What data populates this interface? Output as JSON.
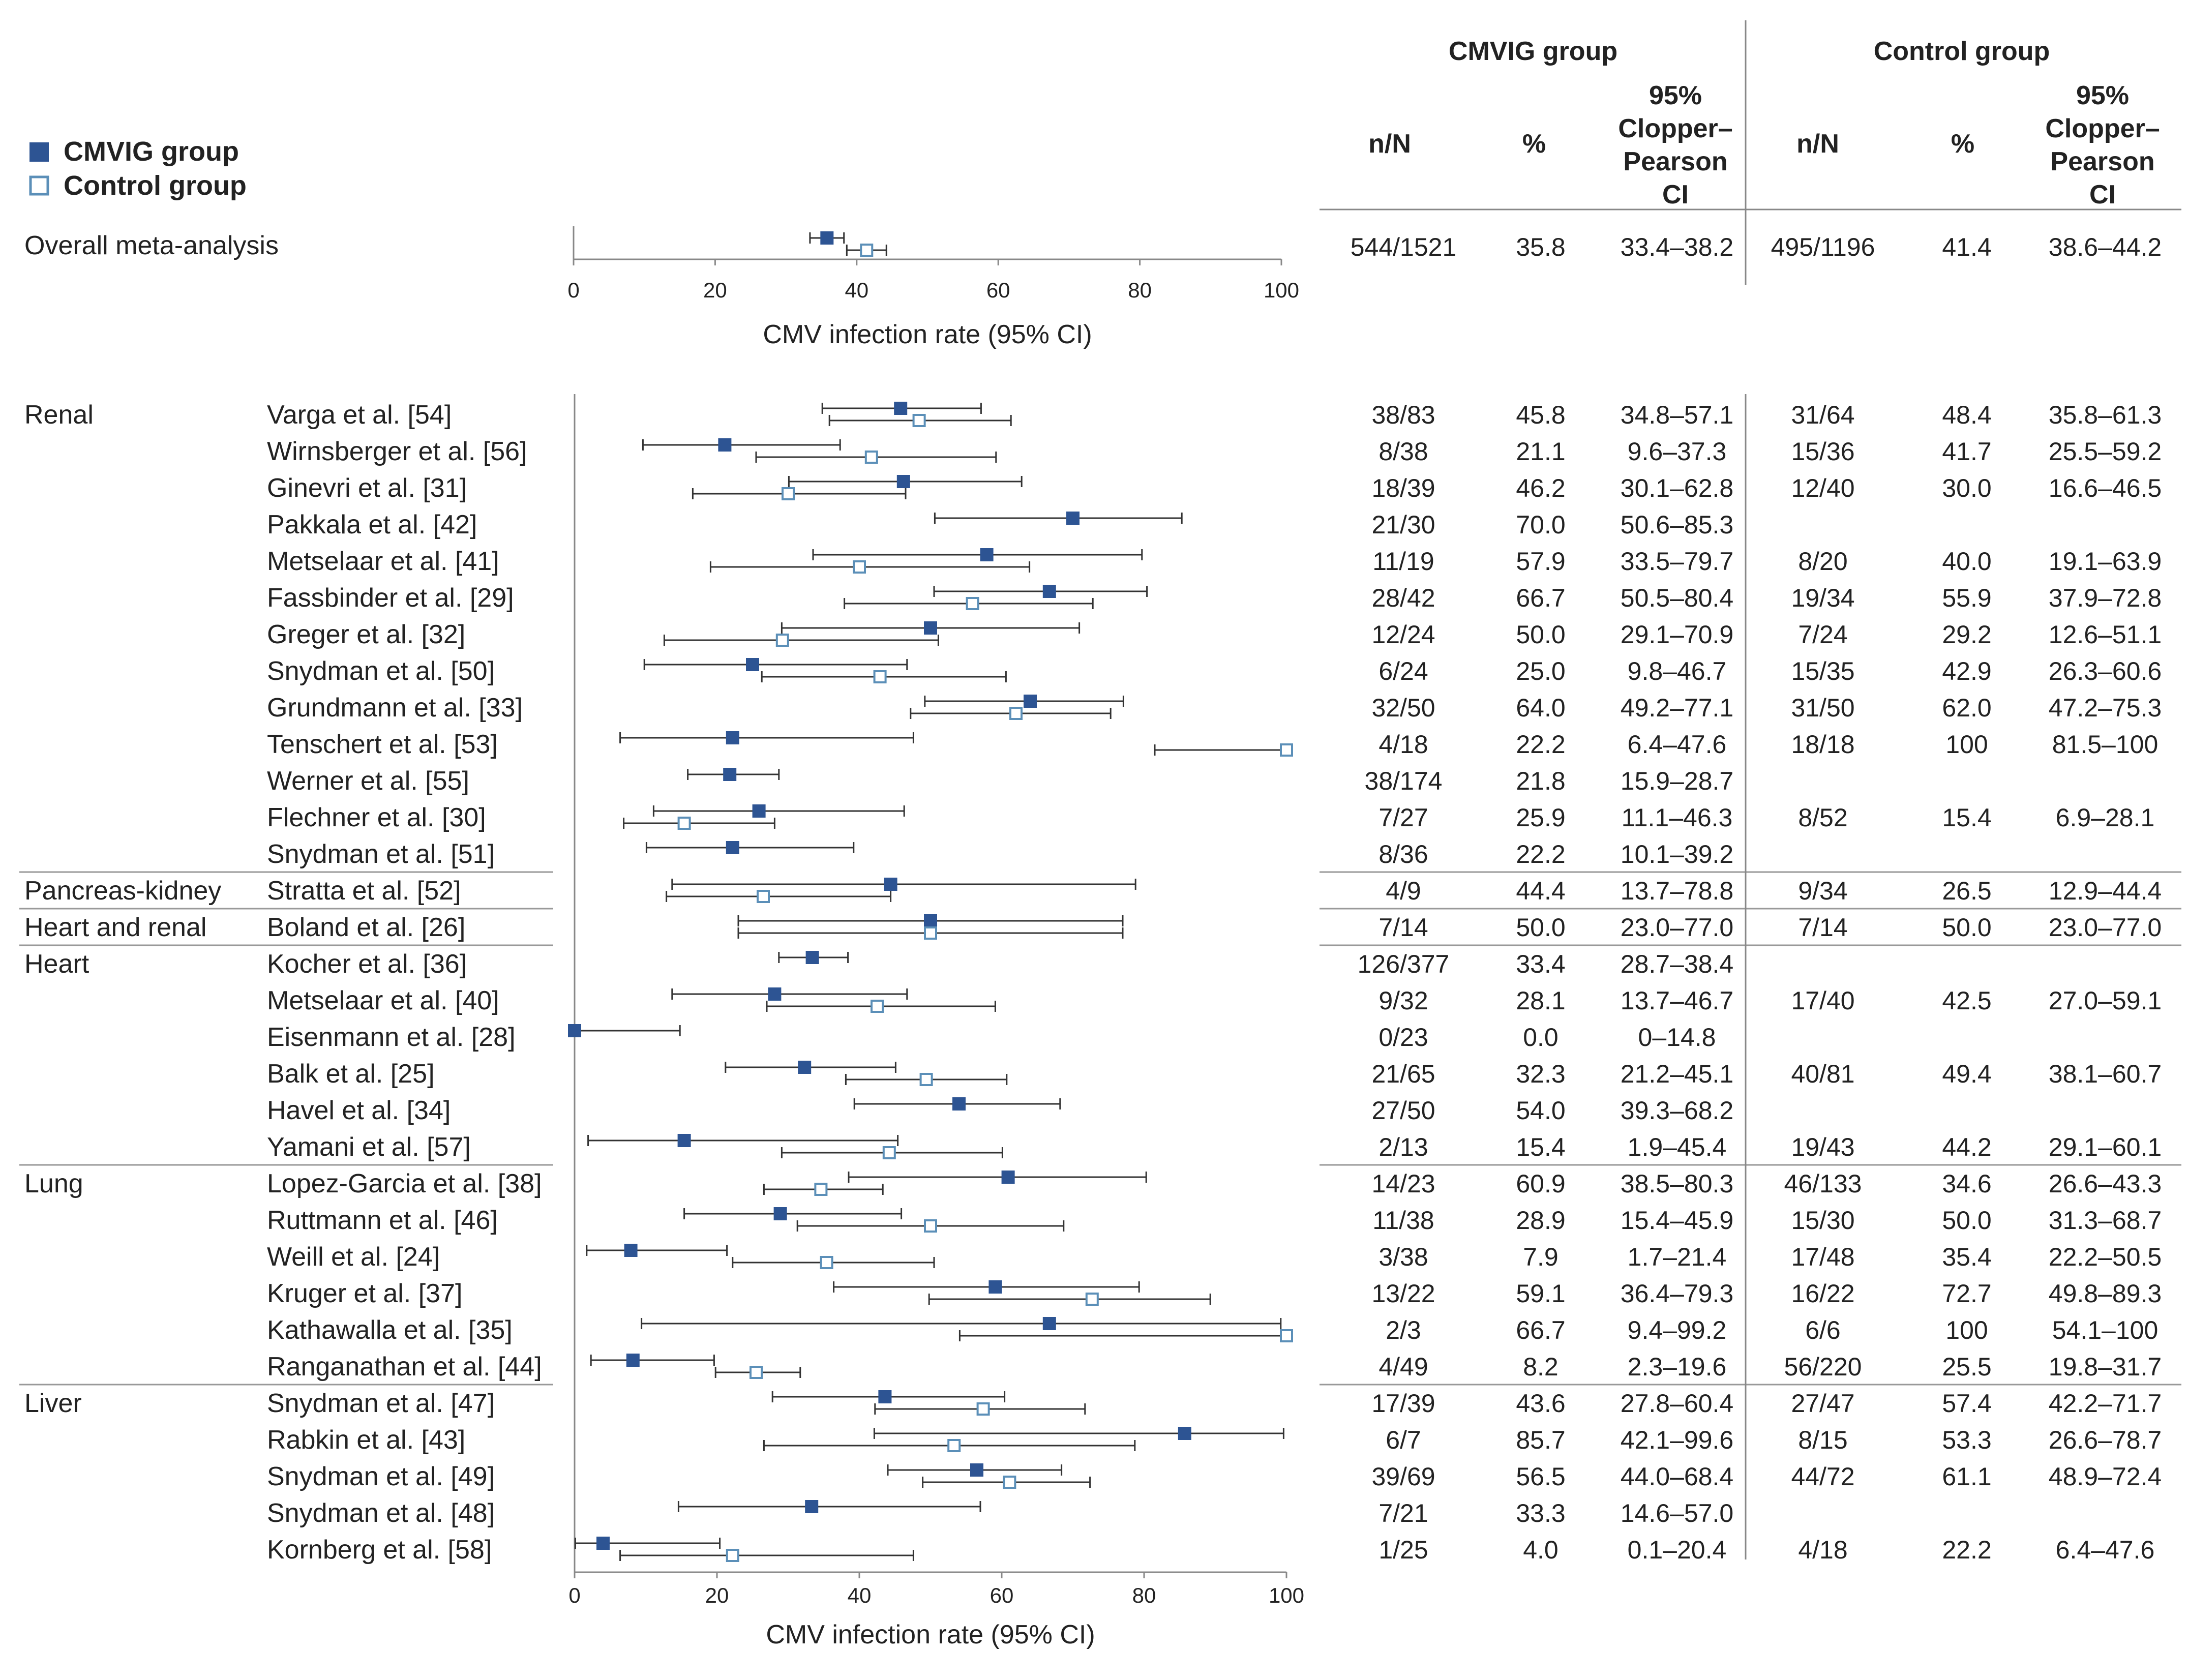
{
  "legend": {
    "cmvig_label": "CMVIG group",
    "control_label": "Control group",
    "cmvig_color": "#2d5493",
    "control_color": "#5b8fb8"
  },
  "table_header": {
    "cmvig_group": "CMVIG group",
    "control_group": "Control group",
    "n_over_n": "n/N",
    "percent": "%",
    "ci_lines": [
      "95%",
      "Clopper–",
      "Pearson",
      "CI"
    ]
  },
  "chart_data": [
    {
      "type": "forest",
      "xlabel": "CMV infection rate (95% CI)",
      "xlim": [
        0,
        100
      ],
      "ticks": [
        0,
        20,
        40,
        60,
        80,
        100
      ],
      "rows": [
        {
          "label": "Overall meta-analysis",
          "cmvig": {
            "nN": "544/1521",
            "pct": "35.8",
            "ci": "33.4–38.2",
            "est": 35.8,
            "lo": 33.4,
            "hi": 38.2
          },
          "control": {
            "nN": "495/1196",
            "pct": "41.4",
            "ci": "38.6–44.2",
            "est": 41.4,
            "lo": 38.6,
            "hi": 44.2
          }
        }
      ]
    },
    {
      "type": "forest",
      "xlabel": "CMV infection rate (95% CI)",
      "xlim": [
        0,
        100
      ],
      "ticks": [
        0,
        20,
        40,
        60,
        80,
        100
      ],
      "rows": [
        {
          "group": "Renal",
          "study": "Varga et al. [54]",
          "cmvig": {
            "nN": "38/83",
            "pct": "45.8",
            "ci": "34.8–57.1",
            "est": 45.8,
            "lo": 34.8,
            "hi": 57.1
          },
          "control": {
            "nN": "31/64",
            "pct": "48.4",
            "ci": "35.8–61.3",
            "est": 48.4,
            "lo": 35.8,
            "hi": 61.3
          }
        },
        {
          "group": "",
          "study": "Wirnsberger et al. [56]",
          "cmvig": {
            "nN": "8/38",
            "pct": "21.1",
            "ci": "9.6–37.3",
            "est": 21.1,
            "lo": 9.6,
            "hi": 37.3
          },
          "control": {
            "nN": "15/36",
            "pct": "41.7",
            "ci": "25.5–59.2",
            "est": 41.7,
            "lo": 25.5,
            "hi": 59.2
          }
        },
        {
          "group": "",
          "study": "Ginevri et al. [31]",
          "cmvig": {
            "nN": "18/39",
            "pct": "46.2",
            "ci": "30.1–62.8",
            "est": 46.2,
            "lo": 30.1,
            "hi": 62.8
          },
          "control": {
            "nN": "12/40",
            "pct": "30.0",
            "ci": "16.6–46.5",
            "est": 30.0,
            "lo": 16.6,
            "hi": 46.5
          }
        },
        {
          "group": "",
          "study": "Pakkala et al. [42]",
          "cmvig": {
            "nN": "21/30",
            "pct": "70.0",
            "ci": "50.6–85.3",
            "est": 70.0,
            "lo": 50.6,
            "hi": 85.3
          },
          "control": null
        },
        {
          "group": "",
          "study": "Metselaar et al. [41]",
          "cmvig": {
            "nN": "11/19",
            "pct": "57.9",
            "ci": "33.5–79.7",
            "est": 57.9,
            "lo": 33.5,
            "hi": 79.7
          },
          "control": {
            "nN": "8/20",
            "pct": "40.0",
            "ci": "19.1–63.9",
            "est": 40.0,
            "lo": 19.1,
            "hi": 63.9
          }
        },
        {
          "group": "",
          "study": "Fassbinder et al. [29]",
          "cmvig": {
            "nN": "28/42",
            "pct": "66.7",
            "ci": "50.5–80.4",
            "est": 66.7,
            "lo": 50.5,
            "hi": 80.4
          },
          "control": {
            "nN": "19/34",
            "pct": "55.9",
            "ci": "37.9–72.8",
            "est": 55.9,
            "lo": 37.9,
            "hi": 72.8
          }
        },
        {
          "group": "",
          "study": "Greger et al. [32]",
          "cmvig": {
            "nN": "12/24",
            "pct": "50.0",
            "ci": "29.1–70.9",
            "est": 50.0,
            "lo": 29.1,
            "hi": 70.9
          },
          "control": {
            "nN": "7/24",
            "pct": "29.2",
            "ci": "12.6–51.1",
            "est": 29.2,
            "lo": 12.6,
            "hi": 51.1
          }
        },
        {
          "group": "",
          "study": "Snydman et al. [50]",
          "cmvig": {
            "nN": "6/24",
            "pct": "25.0",
            "ci": "9.8–46.7",
            "est": 25.0,
            "lo": 9.8,
            "hi": 46.7
          },
          "control": {
            "nN": "15/35",
            "pct": "42.9",
            "ci": "26.3–60.6",
            "est": 42.9,
            "lo": 26.3,
            "hi": 60.6
          }
        },
        {
          "group": "",
          "study": "Grundmann et al. [33]",
          "cmvig": {
            "nN": "32/50",
            "pct": "64.0",
            "ci": "49.2–77.1",
            "est": 64.0,
            "lo": 49.2,
            "hi": 77.1
          },
          "control": {
            "nN": "31/50",
            "pct": "62.0",
            "ci": "47.2–75.3",
            "est": 62.0,
            "lo": 47.2,
            "hi": 75.3
          }
        },
        {
          "group": "",
          "study": "Tenschert et al. [53]",
          "cmvig": {
            "nN": "4/18",
            "pct": "22.2",
            "ci": "6.4–47.6",
            "est": 22.2,
            "lo": 6.4,
            "hi": 47.6
          },
          "control": {
            "nN": "18/18",
            "pct": "100",
            "ci": "81.5–100",
            "est": 100,
            "lo": 81.5,
            "hi": 100
          }
        },
        {
          "group": "",
          "study": "Werner et al. [55]",
          "cmvig": {
            "nN": "38/174",
            "pct": "21.8",
            "ci": "15.9–28.7",
            "est": 21.8,
            "lo": 15.9,
            "hi": 28.7
          },
          "control": null
        },
        {
          "group": "",
          "study": "Flechner et al. [30]",
          "cmvig": {
            "nN": "7/27",
            "pct": "25.9",
            "ci": "11.1–46.3",
            "est": 25.9,
            "lo": 11.1,
            "hi": 46.3
          },
          "control": {
            "nN": "8/52",
            "pct": "15.4",
            "ci": "6.9–28.1",
            "est": 15.4,
            "lo": 6.9,
            "hi": 28.1
          }
        },
        {
          "group": "",
          "study": "Snydman et al. [51]",
          "cmvig": {
            "nN": "8/36",
            "pct": "22.2",
            "ci": "10.1–39.2",
            "est": 22.2,
            "lo": 10.1,
            "hi": 39.2
          },
          "control": null
        },
        {
          "group": "Pancreas-kidney",
          "study": "Stratta et al. [52]",
          "cmvig": {
            "nN": "4/9",
            "pct": "44.4",
            "ci": "13.7–78.8",
            "est": 44.4,
            "lo": 13.7,
            "hi": 78.8
          },
          "control": {
            "nN": "9/34",
            "pct": "26.5",
            "ci": "12.9–44.4",
            "est": 26.5,
            "lo": 12.9,
            "hi": 44.4
          }
        },
        {
          "group": "Heart and renal",
          "study": "Boland et al. [26]",
          "cmvig": {
            "nN": "7/14",
            "pct": "50.0",
            "ci": "23.0–77.0",
            "est": 50.0,
            "lo": 23.0,
            "hi": 77.0
          },
          "control": {
            "nN": "7/14",
            "pct": "50.0",
            "ci": "23.0–77.0",
            "est": 50.0,
            "lo": 23.0,
            "hi": 77.0
          }
        },
        {
          "group": "Heart",
          "study": "Kocher et al. [36]",
          "cmvig": {
            "nN": "126/377",
            "pct": "33.4",
            "ci": "28.7–38.4",
            "est": 33.4,
            "lo": 28.7,
            "hi": 38.4
          },
          "control": null
        },
        {
          "group": "",
          "study": "Metselaar et al. [40]",
          "cmvig": {
            "nN": "9/32",
            "pct": "28.1",
            "ci": "13.7–46.7",
            "est": 28.1,
            "lo": 13.7,
            "hi": 46.7
          },
          "control": {
            "nN": "17/40",
            "pct": "42.5",
            "ci": "27.0–59.1",
            "est": 42.5,
            "lo": 27.0,
            "hi": 59.1
          }
        },
        {
          "group": "",
          "study": "Eisenmann et al. [28]",
          "cmvig": {
            "nN": "0/23",
            "pct": "0.0",
            "ci": "0–14.8",
            "est": 0.0,
            "lo": 0,
            "hi": 14.8
          },
          "control": null
        },
        {
          "group": "",
          "study": "Balk et al. [25]",
          "cmvig": {
            "nN": "21/65",
            "pct": "32.3",
            "ci": "21.2–45.1",
            "est": 32.3,
            "lo": 21.2,
            "hi": 45.1
          },
          "control": {
            "nN": "40/81",
            "pct": "49.4",
            "ci": "38.1–60.7",
            "est": 49.4,
            "lo": 38.1,
            "hi": 60.7
          }
        },
        {
          "group": "",
          "study": "Havel et al. [34]",
          "cmvig": {
            "nN": "27/50",
            "pct": "54.0",
            "ci": "39.3–68.2",
            "est": 54.0,
            "lo": 39.3,
            "hi": 68.2
          },
          "control": null
        },
        {
          "group": "",
          "study": "Yamani et al. [57]",
          "cmvig": {
            "nN": "2/13",
            "pct": "15.4",
            "ci": "1.9–45.4",
            "est": 15.4,
            "lo": 1.9,
            "hi": 45.4
          },
          "control": {
            "nN": "19/43",
            "pct": "44.2",
            "ci": "29.1–60.1",
            "est": 44.2,
            "lo": 29.1,
            "hi": 60.1
          }
        },
        {
          "group": "Lung",
          "study": "Lopez-Garcia et al. [38]",
          "cmvig": {
            "nN": "14/23",
            "pct": "60.9",
            "ci": "38.5–80.3",
            "est": 60.9,
            "lo": 38.5,
            "hi": 80.3
          },
          "control": {
            "nN": "46/133",
            "pct": "34.6",
            "ci": "26.6–43.3",
            "est": 34.6,
            "lo": 26.6,
            "hi": 43.3
          }
        },
        {
          "group": "",
          "study": "Ruttmann et al. [46]",
          "cmvig": {
            "nN": "11/38",
            "pct": "28.9",
            "ci": "15.4–45.9",
            "est": 28.9,
            "lo": 15.4,
            "hi": 45.9
          },
          "control": {
            "nN": "15/30",
            "pct": "50.0",
            "ci": "31.3–68.7",
            "est": 50.0,
            "lo": 31.3,
            "hi": 68.7
          }
        },
        {
          "group": "",
          "study": "Weill et al. [24]",
          "cmvig": {
            "nN": "3/38",
            "pct": "7.9",
            "ci": "1.7–21.4",
            "est": 7.9,
            "lo": 1.7,
            "hi": 21.4
          },
          "control": {
            "nN": "17/48",
            "pct": "35.4",
            "ci": "22.2–50.5",
            "est": 35.4,
            "lo": 22.2,
            "hi": 50.5
          }
        },
        {
          "group": "",
          "study": "Kruger et al. [37]",
          "cmvig": {
            "nN": "13/22",
            "pct": "59.1",
            "ci": "36.4–79.3",
            "est": 59.1,
            "lo": 36.4,
            "hi": 79.3
          },
          "control": {
            "nN": "16/22",
            "pct": "72.7",
            "ci": "49.8–89.3",
            "est": 72.7,
            "lo": 49.8,
            "hi": 89.3
          }
        },
        {
          "group": "",
          "study": "Kathawalla et al. [35]",
          "cmvig": {
            "nN": "2/3",
            "pct": "66.7",
            "ci": "9.4–99.2",
            "est": 66.7,
            "lo": 9.4,
            "hi": 99.2
          },
          "control": {
            "nN": "6/6",
            "pct": "100",
            "ci": "54.1–100",
            "est": 100,
            "lo": 54.1,
            "hi": 100
          }
        },
        {
          "group": "",
          "study": "Ranganathan et al. [44]",
          "cmvig": {
            "nN": "4/49",
            "pct": "8.2",
            "ci": "2.3–19.6",
            "est": 8.2,
            "lo": 2.3,
            "hi": 19.6
          },
          "control": {
            "nN": "56/220",
            "pct": "25.5",
            "ci": "19.8–31.7",
            "est": 25.5,
            "lo": 19.8,
            "hi": 31.7
          }
        },
        {
          "group": "Liver",
          "study": "Snydman et al. [47]",
          "cmvig": {
            "nN": "17/39",
            "pct": "43.6",
            "ci": "27.8–60.4",
            "est": 43.6,
            "lo": 27.8,
            "hi": 60.4
          },
          "control": {
            "nN": "27/47",
            "pct": "57.4",
            "ci": "42.2–71.7",
            "est": 57.4,
            "lo": 42.2,
            "hi": 71.7
          }
        },
        {
          "group": "",
          "study": "Rabkin et al. [43]",
          "cmvig": {
            "nN": "6/7",
            "pct": "85.7",
            "ci": "42.1–99.6",
            "est": 85.7,
            "lo": 42.1,
            "hi": 99.6
          },
          "control": {
            "nN": "8/15",
            "pct": "53.3",
            "ci": "26.6–78.7",
            "est": 53.3,
            "lo": 26.6,
            "hi": 78.7
          }
        },
        {
          "group": "",
          "study": "Snydman et al. [49]",
          "cmvig": {
            "nN": "39/69",
            "pct": "56.5",
            "ci": "44.0–68.4",
            "est": 56.5,
            "lo": 44.0,
            "hi": 68.4
          },
          "control": {
            "nN": "44/72",
            "pct": "61.1",
            "ci": "48.9–72.4",
            "est": 61.1,
            "lo": 48.9,
            "hi": 72.4
          }
        },
        {
          "group": "",
          "study": "Snydman et al. [48]",
          "cmvig": {
            "nN": "7/21",
            "pct": "33.3",
            "ci": "14.6–57.0",
            "est": 33.3,
            "lo": 14.6,
            "hi": 57.0
          },
          "control": null
        },
        {
          "group": "",
          "study": "Kornberg et al. [58]",
          "cmvig": {
            "nN": "1/25",
            "pct": "4.0",
            "ci": "0.1–20.4",
            "est": 4.0,
            "lo": 0.1,
            "hi": 20.4
          },
          "control": {
            "nN": "4/18",
            "pct": "22.2",
            "ci": "6.4–47.6",
            "est": 22.2,
            "lo": 6.4,
            "hi": 47.6
          }
        }
      ]
    }
  ]
}
